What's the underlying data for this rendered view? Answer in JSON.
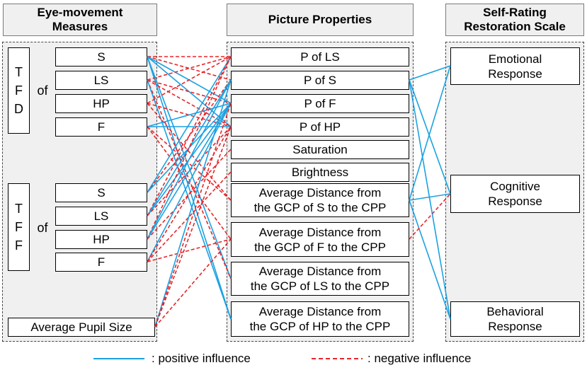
{
  "headers": {
    "eye": "Eye-movement\nMeasures",
    "pic": "Picture Properties",
    "srs": "Self-Rating\nRestoration Scale"
  },
  "eye": {
    "tfd_label": "T\nF\nD",
    "tff_label": "T\nF\nF",
    "of_label": "of",
    "tfd_items": [
      "S",
      "LS",
      "HP",
      "F"
    ],
    "tff_items": [
      "S",
      "LS",
      "HP",
      "F"
    ],
    "pupil": "Average Pupil Size"
  },
  "pictures": [
    "P of LS",
    "P of S",
    "P of F",
    "P of HP",
    "Saturation",
    "Brightness",
    "Average Distance from\nthe GCP of S to the CPP",
    "Average Distance from\nthe GCP of F to the CPP",
    "Average Distance from\nthe GCP of LS to the CPP",
    "Average Distance from\nthe GCP of HP to the CPP"
  ],
  "srs": [
    "Emotional\nResponse",
    "Cognitive\nResponse",
    "Behavioral\nResponse"
  ],
  "legend": {
    "positive": ": positive influence",
    "negative": ": negative influence"
  },
  "colors": {
    "positive": "#1ba1e2",
    "negative": "#e8252a"
  },
  "links_eye_to_picture": [
    {
      "from": "tfd-S",
      "to": 0,
      "type": "negative"
    },
    {
      "from": "tfd-S",
      "to": 1,
      "type": "negative"
    },
    {
      "from": "tfd-S",
      "to": 2,
      "type": "positive"
    },
    {
      "from": "tfd-S",
      "to": 3,
      "type": "positive"
    },
    {
      "from": "tfd-S",
      "to": 8,
      "type": "positive"
    },
    {
      "from": "tfd-S",
      "to": 9,
      "type": "positive"
    },
    {
      "from": "tfd-LS",
      "to": 0,
      "type": "negative"
    },
    {
      "from": "tfd-LS",
      "to": 2,
      "type": "negative"
    },
    {
      "from": "tfd-LS",
      "to": 3,
      "type": "negative"
    },
    {
      "from": "tfd-LS",
      "to": 8,
      "type": "negative"
    },
    {
      "from": "tfd-LS",
      "to": 9,
      "type": "positive"
    },
    {
      "from": "tfd-HP",
      "to": 0,
      "type": "negative"
    },
    {
      "from": "tfd-HP",
      "to": 3,
      "type": "negative"
    },
    {
      "from": "tfd-HP",
      "to": 6,
      "type": "negative"
    },
    {
      "from": "tfd-F",
      "to": 2,
      "type": "positive"
    },
    {
      "from": "tfd-F",
      "to": 3,
      "type": "positive"
    },
    {
      "from": "tfd-F",
      "to": 6,
      "type": "negative"
    },
    {
      "from": "tfd-F",
      "to": 7,
      "type": "negative"
    },
    {
      "from": "tff-S",
      "to": 0,
      "type": "positive"
    },
    {
      "from": "tff-S",
      "to": 1,
      "type": "negative"
    },
    {
      "from": "tff-S",
      "to": 2,
      "type": "positive"
    },
    {
      "from": "tff-LS",
      "to": 0,
      "type": "negative"
    },
    {
      "from": "tff-LS",
      "to": 1,
      "type": "positive"
    },
    {
      "from": "tff-LS",
      "to": 2,
      "type": "positive"
    },
    {
      "from": "tff-LS",
      "to": 3,
      "type": "negative"
    },
    {
      "from": "tff-HP",
      "to": 0,
      "type": "negative"
    },
    {
      "from": "tff-HP",
      "to": 1,
      "type": "positive"
    },
    {
      "from": "tff-HP",
      "to": 2,
      "type": "positive"
    },
    {
      "from": "tff-HP",
      "to": 4,
      "type": "negative"
    },
    {
      "from": "tff-F",
      "to": 2,
      "type": "positive"
    },
    {
      "from": "tff-F",
      "to": 3,
      "type": "negative"
    },
    {
      "from": "tff-F",
      "to": 5,
      "type": "negative"
    },
    {
      "from": "tff-F",
      "to": 7,
      "type": "negative"
    },
    {
      "from": "pupil",
      "to": 1,
      "type": "positive"
    },
    {
      "from": "pupil",
      "to": 2,
      "type": "negative"
    },
    {
      "from": "pupil",
      "to": 3,
      "type": "negative"
    },
    {
      "from": "pupil",
      "to": 7,
      "type": "negative"
    }
  ],
  "links_picture_to_srs": [
    {
      "from": 1,
      "to": 0,
      "type": "positive"
    },
    {
      "from": 1,
      "to": 1,
      "type": "positive"
    },
    {
      "from": 1,
      "to": 2,
      "type": "positive"
    },
    {
      "from": 6,
      "to": 0,
      "type": "positive"
    },
    {
      "from": 6,
      "to": 1,
      "type": "positive"
    },
    {
      "from": 6,
      "to": 2,
      "type": "positive"
    },
    {
      "from": 7,
      "to": 1,
      "type": "negative"
    }
  ]
}
